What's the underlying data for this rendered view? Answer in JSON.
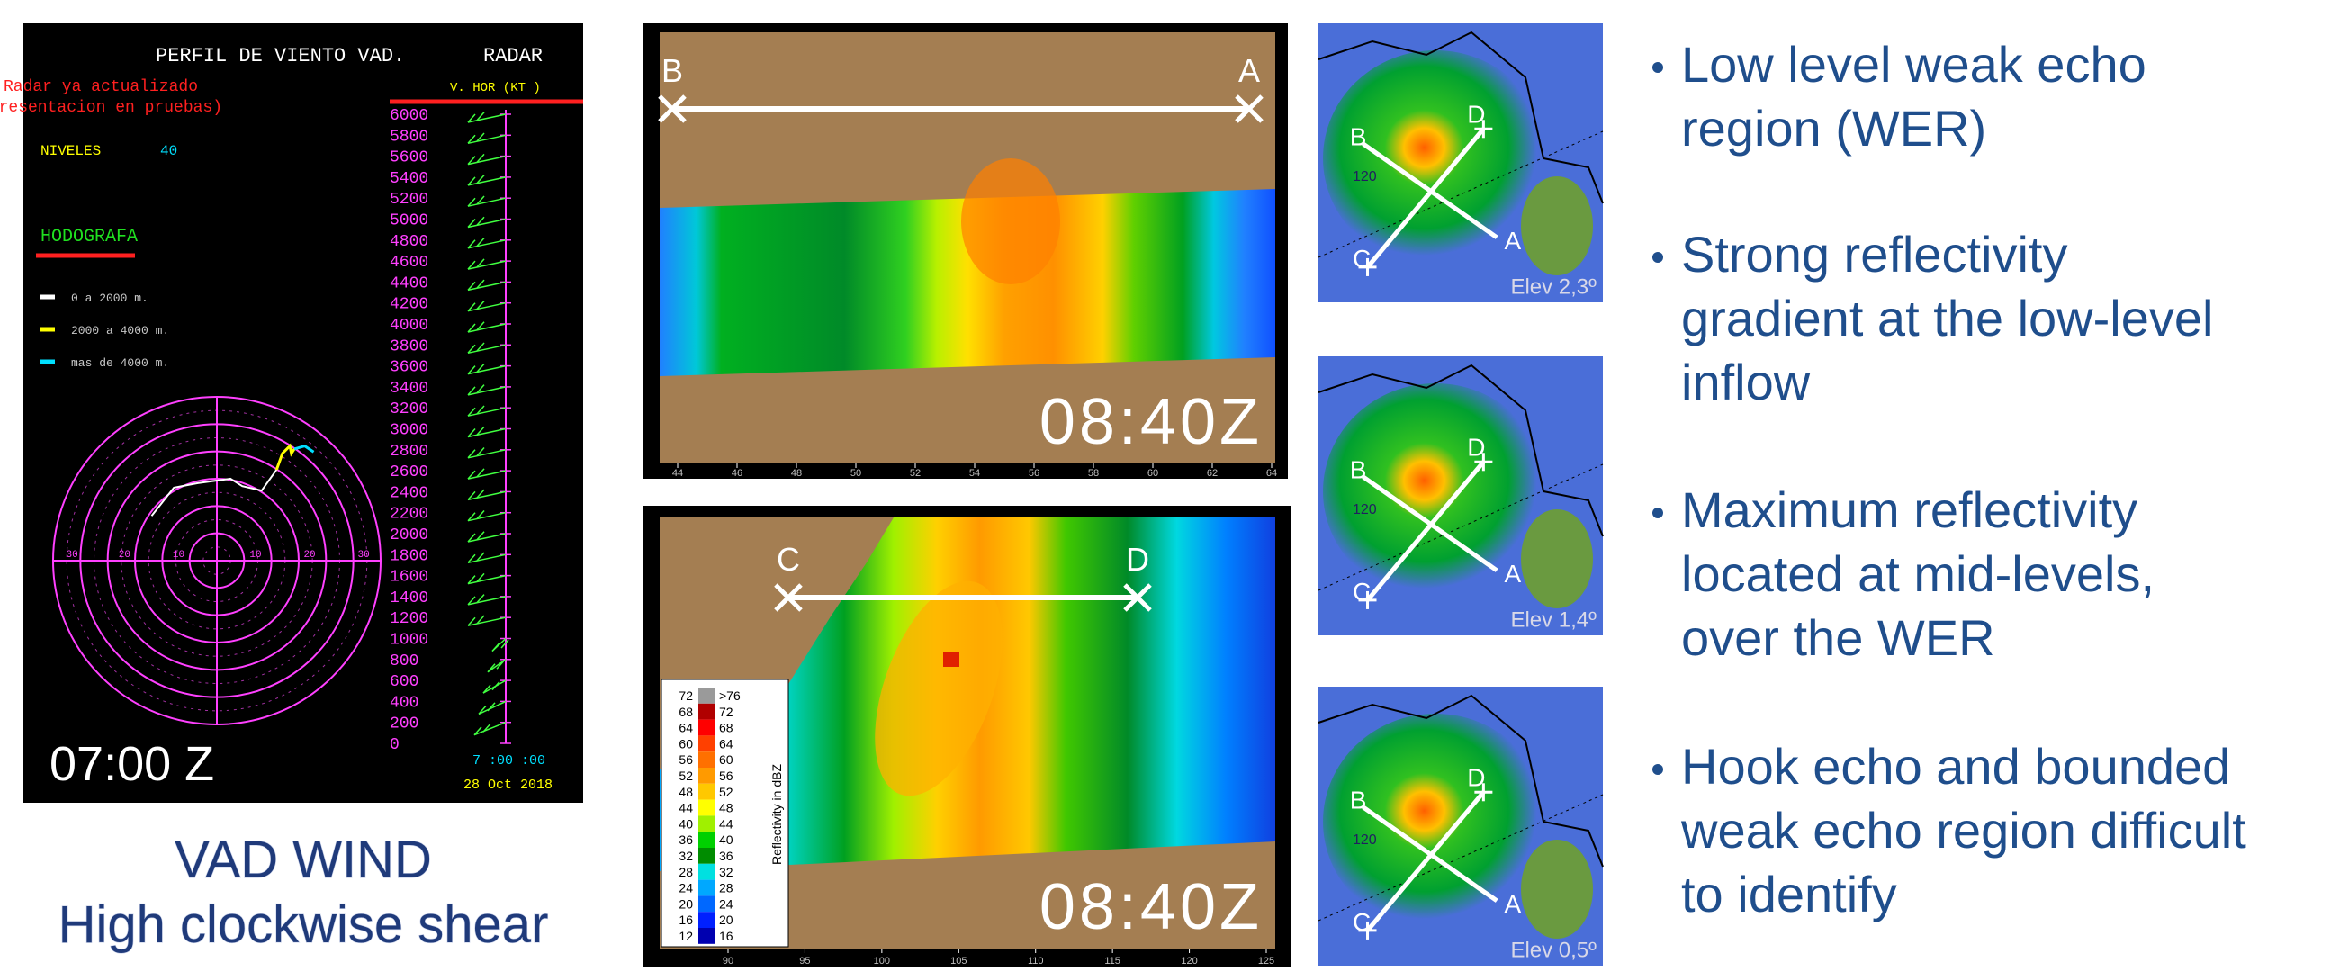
{
  "vad_panel": {
    "title": "PERFIL DE VIENTO VAD.",
    "title_right": "RADAR",
    "status": [
      "Radar ya actualizado",
      "(presentacion en pruebas)"
    ],
    "levels_label": "NIVELES",
    "levels_value": "40",
    "hodograph_title": "HODOGRAFA",
    "legend": [
      {
        "label": "0 a 2000 m.",
        "color": "#ffffff"
      },
      {
        "label": "2000 a 4000 m.",
        "color": "#ffff00"
      },
      {
        "label": "mas de 4000 m.",
        "color": "#00e0ff"
      }
    ],
    "speed_header": "V. HOR (KT )",
    "altitudes": [
      6000,
      5800,
      5600,
      5400,
      5200,
      5000,
      4800,
      4600,
      4400,
      4200,
      4000,
      3800,
      3600,
      3400,
      3200,
      3000,
      2800,
      2600,
      2400,
      2200,
      2000,
      1800,
      1600,
      1400,
      1200,
      1000,
      800,
      600,
      400,
      200,
      0
    ],
    "ring_labels": [
      30,
      20,
      10,
      10,
      20,
      30
    ],
    "footer_time": "7 :00 :00",
    "footer_date": "28 Oct 2018",
    "time_label": "07:00 Z"
  },
  "vad_caption": [
    "VAD WIND",
    "High clockwise shear"
  ],
  "cross_sections": [
    {
      "left_point": "B",
      "right_point": "A",
      "time": "08:40Z",
      "x_ticks": [
        44,
        46,
        48,
        50,
        52,
        54,
        56,
        58,
        60,
        62,
        64
      ]
    },
    {
      "left_point": "C",
      "right_point": "D",
      "time": "08:40Z",
      "x_ticks": [
        90,
        95,
        100,
        105,
        110,
        115,
        120,
        125
      ]
    }
  ],
  "color_legend": {
    "title": "Reflectivity in dBZ",
    "low": [
      72,
      68,
      64,
      60,
      56,
      52,
      48,
      44,
      40,
      36,
      32,
      28,
      24,
      20,
      16,
      12
    ],
    "high": [
      ">76",
      72,
      68,
      64,
      60,
      56,
      52,
      48,
      44,
      40,
      36,
      32,
      28,
      24,
      20,
      16
    ],
    "colors": [
      "#9a9a9a",
      "#b00000",
      "#ff0000",
      "#ff4000",
      "#ff7000",
      "#ff9a00",
      "#ffc800",
      "#ffff00",
      "#a0f000",
      "#00d000",
      "#008c00",
      "#00e0e0",
      "#00a8ff",
      "#0068ff",
      "#0020ff",
      "#0000b0"
    ]
  },
  "ppi_panels": [
    {
      "b": "B",
      "d": "D",
      "c": "C",
      "a": "A",
      "range": "120",
      "elevation": "Elev 2,3º"
    },
    {
      "b": "B",
      "d": "D",
      "c": "C",
      "a": "A",
      "range": "120",
      "elevation": "Elev 1,4º"
    },
    {
      "b": "B",
      "d": "D",
      "c": "C",
      "a": "A",
      "range": "120",
      "elevation": "Elev 0,5º"
    }
  ],
  "bullets": [
    {
      "lines": [
        "Low level weak echo",
        "region (WER)"
      ]
    },
    {
      "lines": [
        "Strong reflectivity",
        "gradient at the low-level",
        "inflow"
      ]
    },
    {
      "lines": [
        "Maximum reflectivity",
        "located at mid-levels,",
        "over the WER"
      ]
    },
    {
      "lines": [
        "Hook echo and bounded",
        "weak echo region difficult",
        "to identify"
      ]
    }
  ]
}
